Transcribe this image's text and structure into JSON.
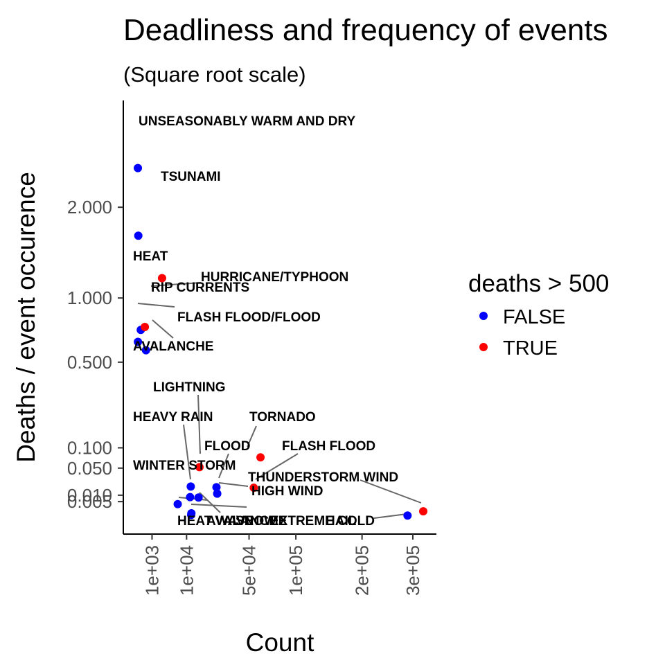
{
  "chart_data": {
    "type": "scatter",
    "title": "Deadliness and frequency of events",
    "subtitle": "(Square root scale)",
    "xlabel": "Count",
    "ylabel": "Deaths / event occurence",
    "x_scale": "sqrt",
    "y_scale": "sqrt",
    "xlim": [
      0,
      320000
    ],
    "ylim": [
      0,
      2.75
    ],
    "x_ticks": [
      {
        "value": 1000,
        "label": "1e+03"
      },
      {
        "value": 10000,
        "label": "1e+04"
      },
      {
        "value": 50000,
        "label": "5e+04"
      },
      {
        "value": 100000,
        "label": "1e+05"
      },
      {
        "value": 200000,
        "label": "2e+05"
      },
      {
        "value": 300000,
        "label": "3e+05"
      }
    ],
    "y_ticks": [
      {
        "value": 0.005,
        "label": "0.005"
      },
      {
        "value": 0.01,
        "label": "0.010"
      },
      {
        "value": 0.05,
        "label": "0.050"
      },
      {
        "value": 0.1,
        "label": "0.100"
      },
      {
        "value": 0.5,
        "label": "0.500"
      },
      {
        "value": 1.0,
        "label": "1.000"
      },
      {
        "value": 2.0,
        "label": "2.000"
      }
    ],
    "legend": {
      "title": "deaths > 500",
      "position": "right",
      "entries": [
        {
          "label": "FALSE",
          "color": "#0000ff"
        },
        {
          "label": "TRUE",
          "color": "#ff0000"
        }
      ]
    },
    "points": [
      {
        "label": "UNSEASONABLY WARM AND DRY",
        "x": 13,
        "y": 2.538,
        "deaths_gt_500": false
      },
      {
        "label": "TSUNAMI",
        "x": 20,
        "y": 1.65,
        "deaths_gt_500": false
      },
      {
        "label": "HEAT",
        "x": 2648,
        "y": 1.19,
        "deaths_gt_500": true
      },
      {
        "label": "HURRICANE/TYPHOON",
        "x": 88,
        "y": 0.73,
        "deaths_gt_500": false
      },
      {
        "label": "RIP CURRENTS",
        "x": 304,
        "y": 0.753,
        "deaths_gt_500": true
      },
      {
        "label": "FLASH FLOOD/FLOOD",
        "x": 14,
        "y": 0.64,
        "deaths_gt_500": false
      },
      {
        "label": "AVALANCHE",
        "x": 386,
        "y": 0.58,
        "deaths_gt_500": false
      },
      {
        "label": "LIGHTNING",
        "x": 15754,
        "y": 0.052,
        "deaths_gt_500": true
      },
      {
        "label": "HEAVY RAIN",
        "x": 11723,
        "y": 0.0195,
        "deaths_gt_500": false
      },
      {
        "label": "TORNADO",
        "x": 60652,
        "y": 0.0744,
        "deaths_gt_500": true
      },
      {
        "label": "FLOOD",
        "x": 25326,
        "y": 0.0186,
        "deaths_gt_500": false
      },
      {
        "label": "FLASH FLOOD",
        "x": 54277,
        "y": 0.0179,
        "deaths_gt_500": true
      },
      {
        "label": "WINTER STORM",
        "x": 11433,
        "y": 0.0083,
        "deaths_gt_500": false
      },
      {
        "label": "THUNDERSTORM WIND",
        "x": 323000,
        "y": 0.0007,
        "deaths_gt_500": true
      },
      {
        "label": "HIGH WIND",
        "x": 25800,
        "y": 0.0115,
        "deaths_gt_500": false
      },
      {
        "label": "HEAT WAVE",
        "x": 15300,
        "y": 0.008,
        "deaths_gt_500": false
      },
      {
        "label": "AVALANCHE",
        "x": 6800,
        "y": 0.0035,
        "deaths_gt_500": false
      },
      {
        "label": "SNOW",
        "x": 12000,
        "y": 0.0003,
        "deaths_gt_500": false
      },
      {
        "label": "EXTREME COLD",
        "x": 11900,
        "y": 0.0001,
        "deaths_gt_500": false
      },
      {
        "label": "HAIL",
        "x": 288661,
        "y": 5e-05,
        "deaths_gt_500": false
      }
    ]
  }
}
